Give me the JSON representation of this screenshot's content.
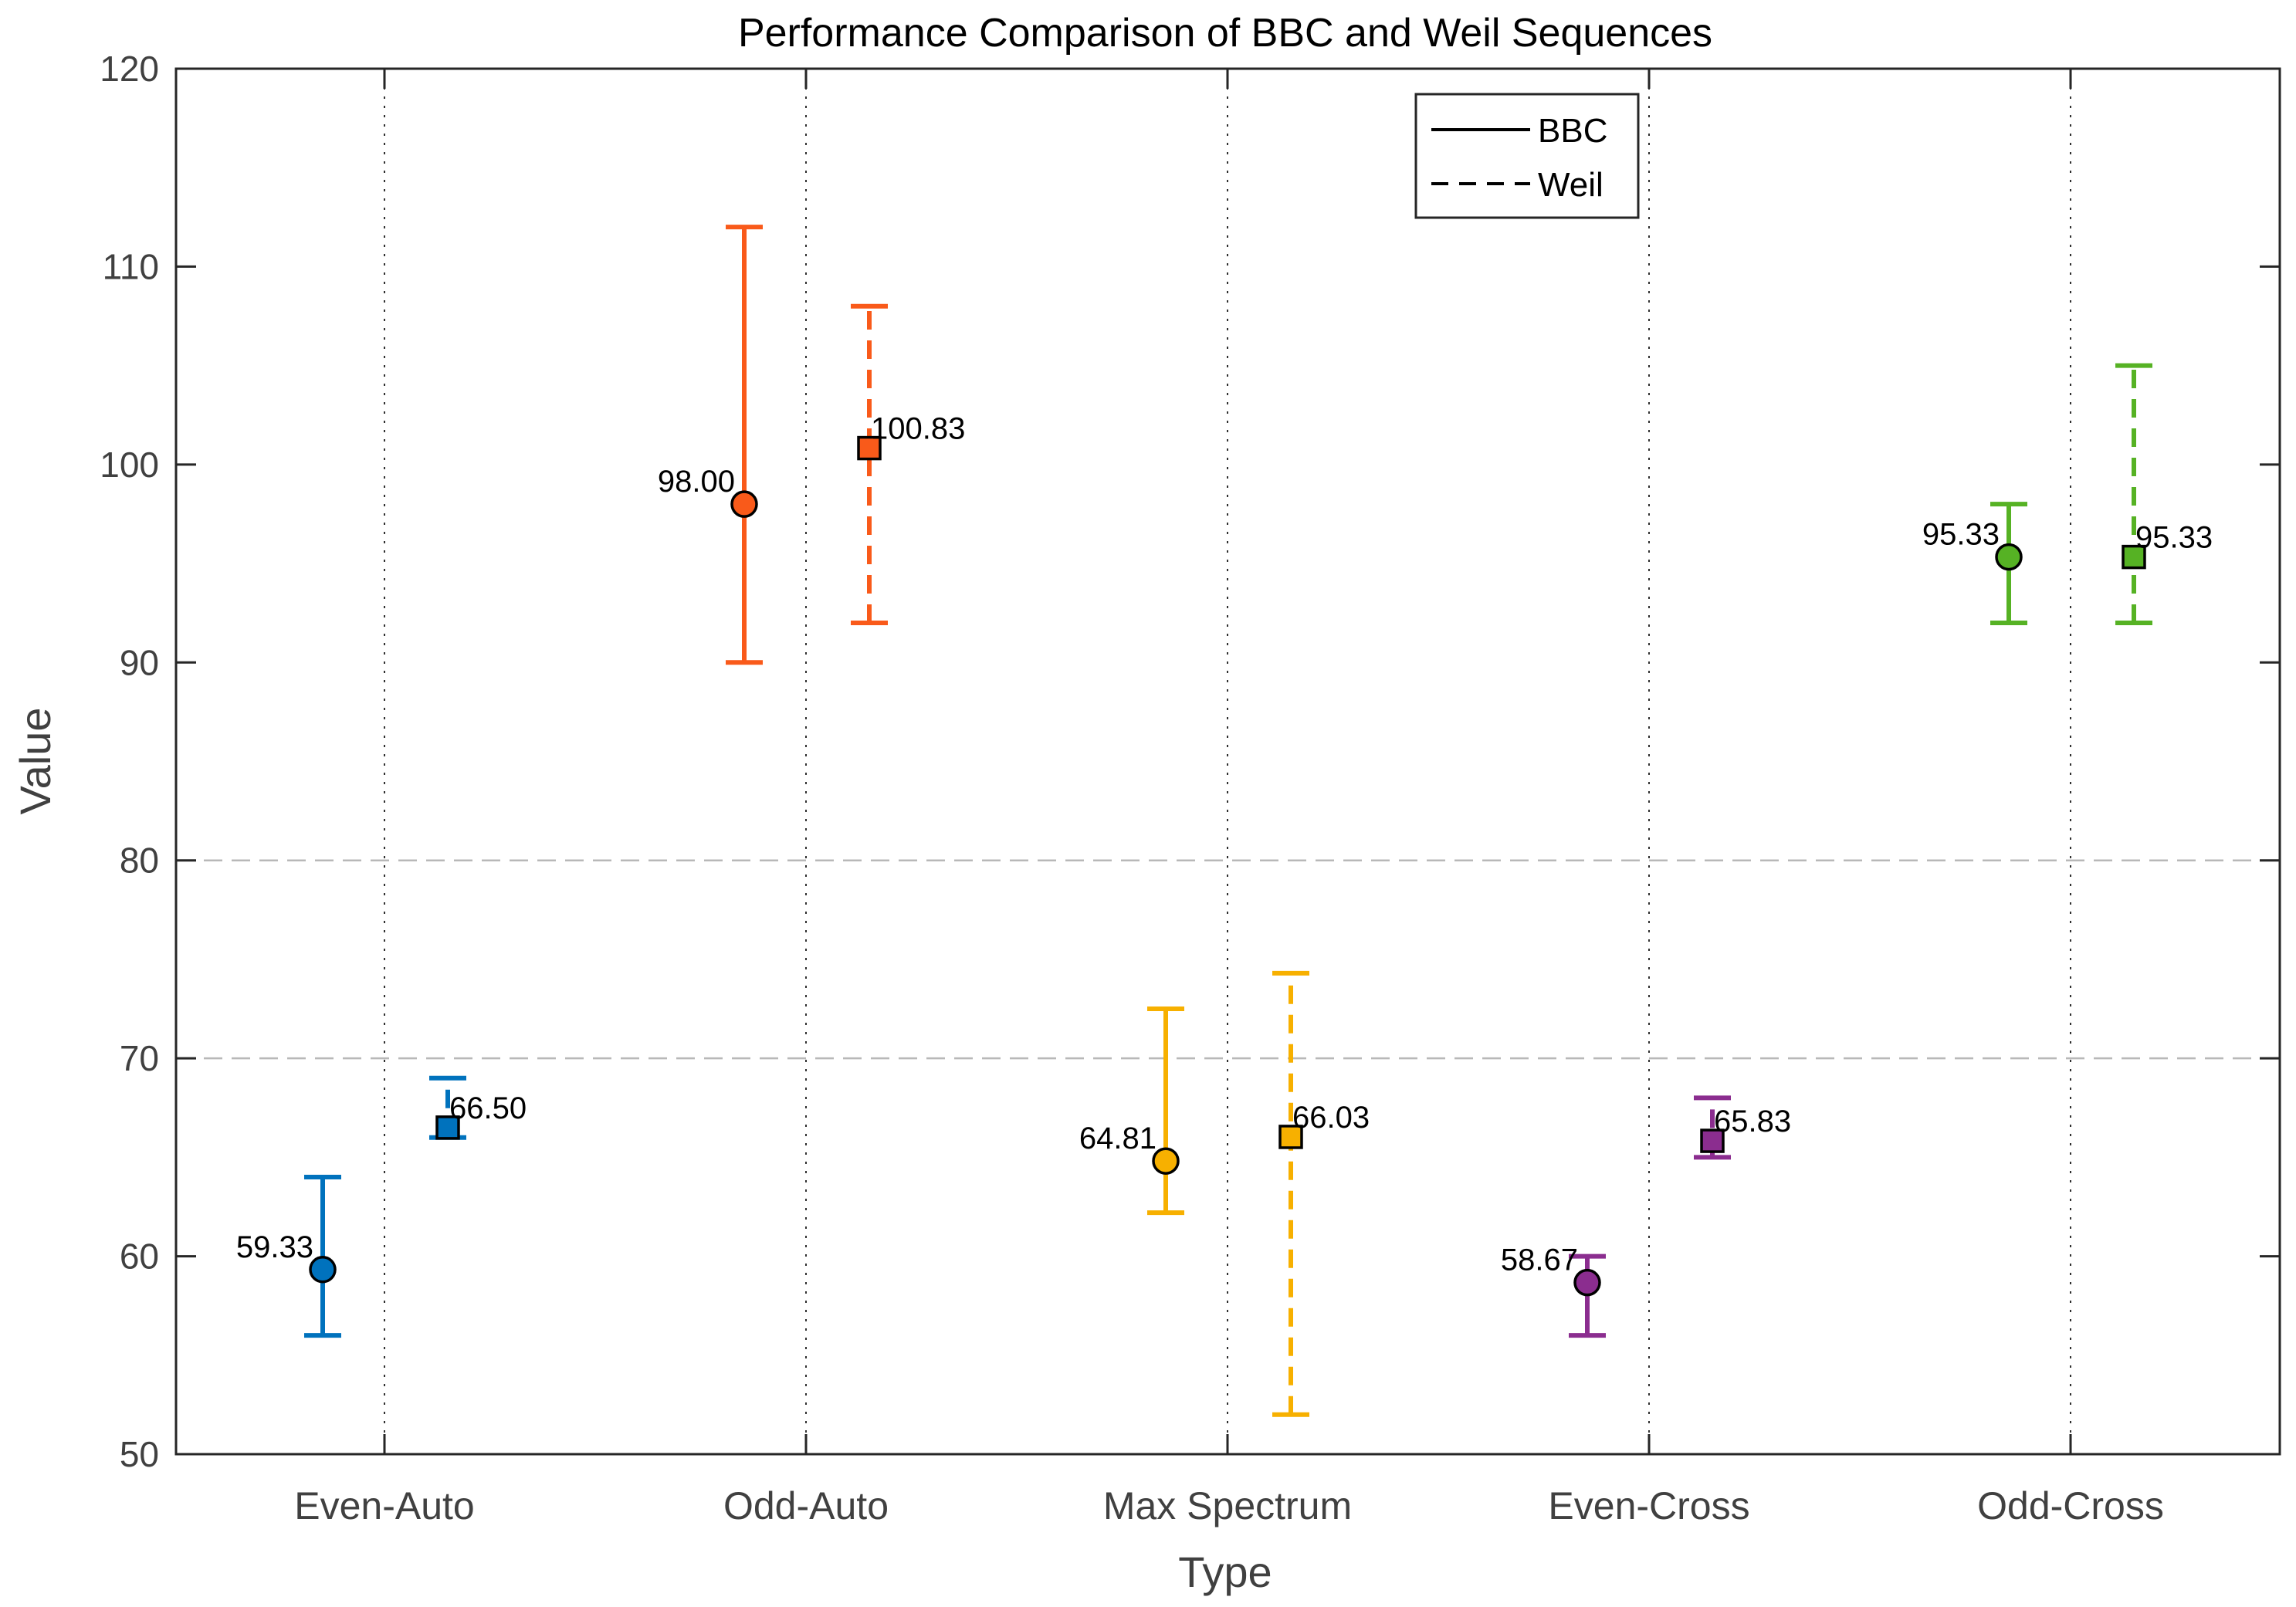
{
  "chart_data": {
    "type": "scatter",
    "title": "Performance Comparison of BBC and Weil Sequences",
    "xlabel": "Type",
    "ylabel": "Value",
    "ylim": [
      50,
      120
    ],
    "yticks": [
      50,
      60,
      70,
      80,
      90,
      100,
      110,
      120
    ],
    "categories": [
      "Even-Auto",
      "Odd-Auto",
      "Max Spectrum",
      "Even-Cross",
      "Odd-Cross"
    ],
    "colors": [
      "#0072BD",
      "#F95A1A",
      "#F7B000",
      "#8B2D8F",
      "#56B224"
    ],
    "grid": {
      "horizontal_dashed_at": [
        70,
        80
      ],
      "vertical_dotted_at_categories": true
    },
    "legend": {
      "position": "top-right",
      "entries": [
        {
          "label": "BBC",
          "line_style": "solid"
        },
        {
          "label": "Weil",
          "line_style": "dashed"
        }
      ]
    },
    "series": [
      {
        "name": "BBC",
        "line_style": "solid",
        "marker": "circle",
        "values": [
          59.33,
          98.0,
          64.81,
          58.67,
          95.33
        ],
        "lower": [
          56,
          90,
          62.2,
          56,
          92
        ],
        "upper": [
          64,
          112,
          72.5,
          60,
          98
        ],
        "labels": [
          "59.33",
          "98.00",
          "64.81",
          "58.67",
          "95.33"
        ]
      },
      {
        "name": "Weil",
        "line_style": "dashed",
        "marker": "square",
        "values": [
          66.5,
          100.83,
          66.03,
          65.83,
          95.33
        ],
        "lower": [
          66,
          92,
          52,
          65,
          92
        ],
        "upper": [
          69,
          108,
          74.3,
          68,
          105
        ],
        "labels": [
          "66.50",
          "100.83",
          "66.03",
          "65.83",
          "95.33"
        ]
      }
    ]
  }
}
